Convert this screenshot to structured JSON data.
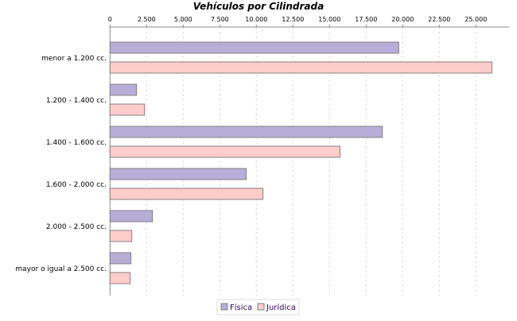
{
  "chart_data": {
    "type": "bar",
    "orientation": "horizontal",
    "title": "Vehículos por Cilindrada",
    "xlabel": "",
    "ylabel": "",
    "categories": [
      "menor a 1.200 cc.",
      "1.200 - 1.400 cc.",
      "1.400 - 1.600 cc.",
      "1.600 - 2.000 cc.",
      "2.000 - 2.500 cc.",
      "mayor o igual a 2.500 cc."
    ],
    "series": [
      {
        "name": "Física",
        "color": "#b7aed8",
        "values": [
          19730,
          1810,
          18610,
          9310,
          2900,
          1430
        ]
      },
      {
        "name": "Jurídica",
        "color": "#ffcccc",
        "values": [
          26090,
          2360,
          15710,
          10450,
          1490,
          1380
        ]
      }
    ],
    "value_axis": {
      "position": "top",
      "range": [
        0,
        27300
      ],
      "ticks": [
        0,
        2500,
        5000,
        7500,
        10000,
        12500,
        15000,
        17500,
        20000,
        22500,
        25000
      ],
      "tick_labels": [
        "0",
        "2.500",
        "5.000",
        "7.500",
        "10.000",
        "12.500",
        "15.000",
        "17.500",
        "20.000",
        "22.500",
        "25.000"
      ]
    },
    "grid": true,
    "legend_placement": "bottom"
  }
}
